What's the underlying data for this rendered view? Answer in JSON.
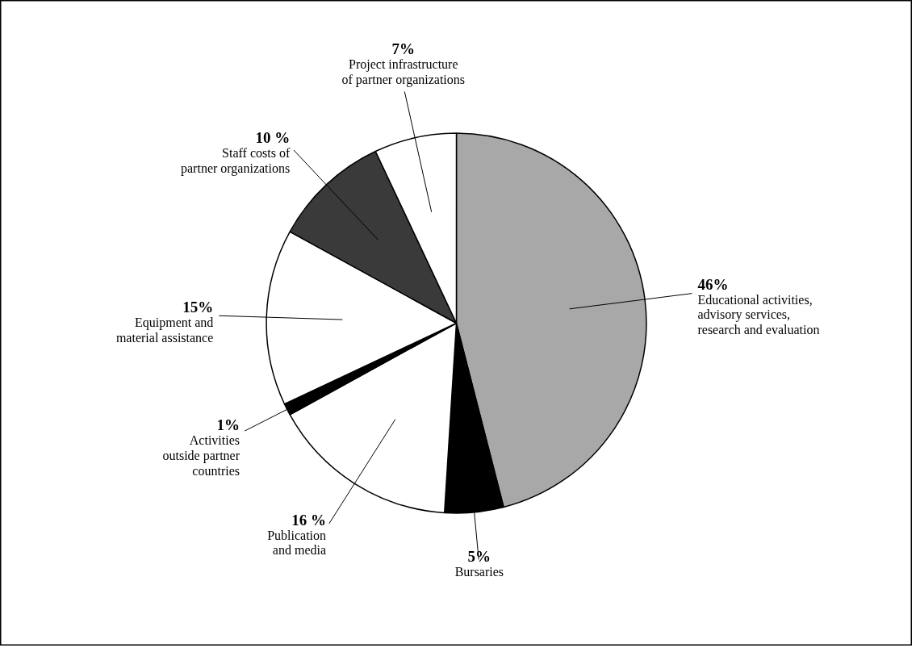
{
  "chart_data": {
    "type": "pie",
    "categories": [
      "Educational activities,\nadvisory services,\nresearch and evaluation",
      "Bursaries",
      "Publication\nand media",
      "Activities\noutside partner\ncountries",
      "Equipment and\nmaterial assistance",
      "Staff costs of\npartner organizations",
      "Project infrastructure\nof partner organizations"
    ],
    "values": [
      46,
      5,
      16,
      1,
      15,
      10,
      7
    ],
    "value_labels": [
      "46%",
      "5%",
      "16 %",
      "1%",
      "15%",
      "10 %",
      "7%"
    ],
    "colors": [
      "#a8a8a8",
      "#000000",
      "#ffffff",
      "#000000",
      "#ffffff",
      "#3a3a3a",
      "#ffffff"
    ]
  }
}
